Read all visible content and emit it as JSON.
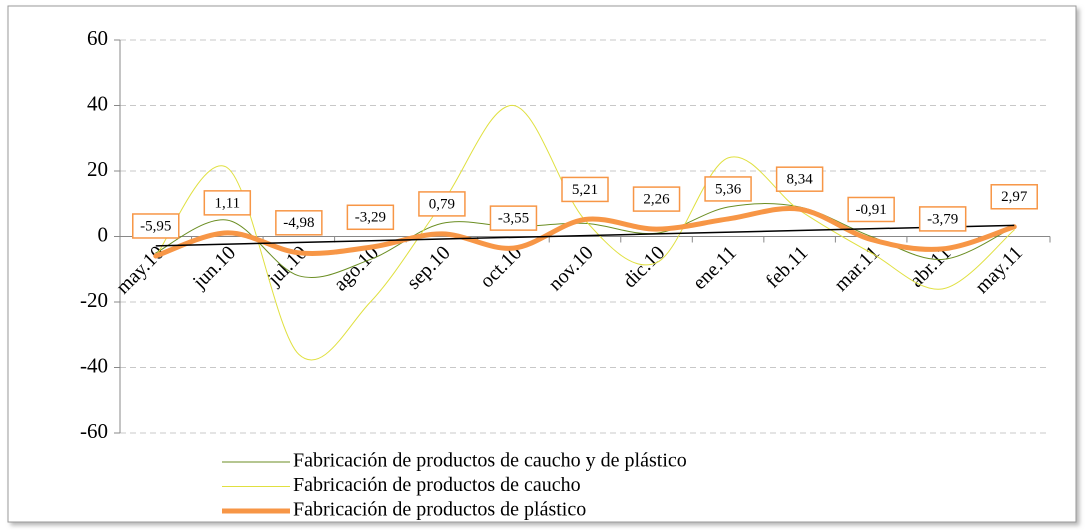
{
  "chart_data": {
    "type": "line",
    "categories": [
      "may.10",
      "jun.10",
      "jul.10",
      "ago.10",
      "sep.10",
      "oct.10",
      "nov.10",
      "dic.10",
      "ene.11",
      "feb.11",
      "mar.11",
      "abr.11",
      "may.11"
    ],
    "series": [
      {
        "name": "Fabricación de productos de caucho y de plástico",
        "color": "#6b8e23",
        "width": 1,
        "values": [
          -5,
          5,
          -12,
          -7,
          4,
          3,
          4,
          1,
          9,
          9,
          0,
          -7,
          3
        ]
      },
      {
        "name": "Fabricación de productos de caucho",
        "color": "#e0e040",
        "width": 1,
        "values": [
          -6,
          21,
          -36,
          -20,
          10,
          40,
          5,
          -8,
          24,
          8,
          -5,
          -16,
          2
        ]
      },
      {
        "name": "Fabricación de productos de plástico",
        "color": "#f79646",
        "width": 5,
        "values": [
          -5.95,
          1.11,
          -4.98,
          -3.29,
          0.79,
          -3.55,
          5.21,
          2.26,
          5.36,
          8.34,
          -0.91,
          -3.79,
          2.97
        ],
        "value_labels": [
          "-5,95",
          "1,11",
          "-4,98",
          "-3,29",
          "0,79",
          "-3,55",
          "5,21",
          "2,26",
          "5,36",
          "8,34",
          "-0,91",
          "-3,79",
          "2,97"
        ],
        "trendline": true
      }
    ],
    "ylim": [
      -60,
      60
    ],
    "yticks": [
      -60,
      -40,
      -20,
      0,
      20,
      40,
      60
    ],
    "grid": true
  }
}
